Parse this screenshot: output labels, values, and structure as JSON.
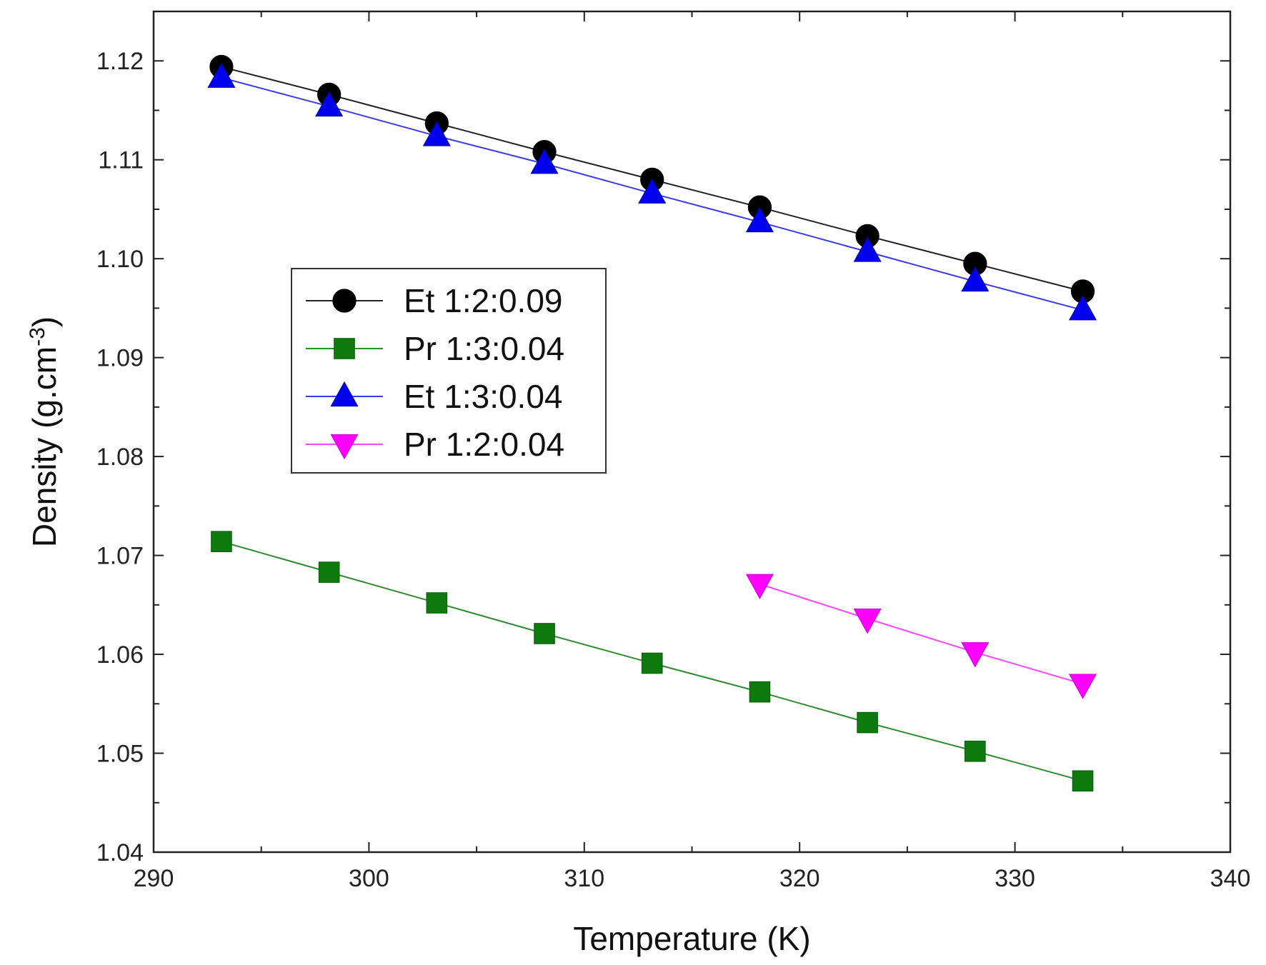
{
  "chart_data": {
    "type": "line",
    "title": "",
    "xlabel": "Temperature (K)",
    "ylabel": "Density (g.cm",
    "ylabel_superscript": "-3",
    "ylabel_close": ")",
    "xlim": [
      290,
      340
    ],
    "ylim": [
      1.04,
      1.125
    ],
    "xticks": [
      "290",
      "300",
      "310",
      "320",
      "330",
      "340"
    ],
    "yticks": [
      "1.04",
      "1.05",
      "1.06",
      "1.07",
      "1.08",
      "1.09",
      "1.10",
      "1.11",
      "1.12"
    ],
    "grid": false,
    "legend_position": "center-left",
    "series": [
      {
        "name": "Et 1:2:0.09",
        "marker": "circle",
        "color": "#000000",
        "line_color": "#222222",
        "x": [
          293.15,
          298.15,
          303.15,
          308.15,
          313.15,
          318.15,
          323.15,
          328.15,
          333.15
        ],
        "values": [
          1.1194,
          1.1166,
          1.1137,
          1.1108,
          1.108,
          1.1052,
          1.1023,
          1.0995,
          1.0967
        ]
      },
      {
        "name": "Pr 1:3:0.04",
        "marker": "square",
        "color": "#0e7a0e",
        "line_color": "#2e8b2e",
        "x": [
          293.15,
          298.15,
          303.15,
          308.15,
          313.15,
          318.15,
          323.15,
          328.15,
          333.15
        ],
        "values": [
          1.0714,
          1.0683,
          1.0652,
          1.0621,
          1.0591,
          1.0562,
          1.0531,
          1.0502,
          1.0472
        ]
      },
      {
        "name": "Et 1:3:0.04",
        "marker": "triangle-up",
        "color": "#0000ee",
        "line_color": "#3a3aee",
        "x": [
          293.15,
          298.15,
          303.15,
          308.15,
          313.15,
          318.15,
          323.15,
          328.15,
          333.15
        ],
        "values": [
          1.1183,
          1.1154,
          1.1124,
          1.1096,
          1.1066,
          1.1037,
          1.1007,
          1.0977,
          1.0948
        ]
      },
      {
        "name": "Pr 1:2:0.04",
        "marker": "triangle-down",
        "color": "#ff00ff",
        "line_color": "#ff44ff",
        "x": [
          318.15,
          323.15,
          328.15,
          333.15
        ],
        "values": [
          1.0671,
          1.0636,
          1.0602,
          1.057
        ]
      }
    ]
  }
}
